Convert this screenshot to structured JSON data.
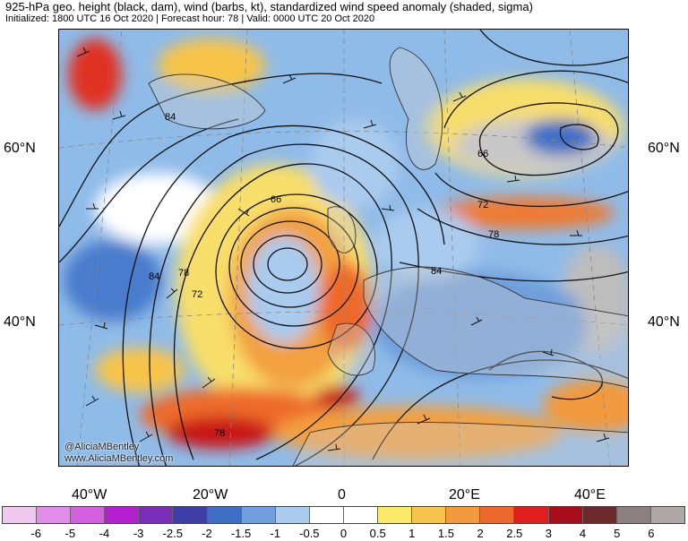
{
  "header": {
    "title": "925-hPa geo. height (black, dam), wind (barbs, kt), standardized wind speed anomaly (shaded, sigma)",
    "subtitle": "Initialized: 1800 UTC 16 Oct 2020 | Forecast hour: 78 | Valid: 0000 UTC 20 Oct 2020"
  },
  "axes": {
    "lat_left": [
      "60°N",
      "40°N"
    ],
    "lat_right": [
      "60°N",
      "40°N"
    ],
    "lon": [
      "40°W",
      "20°W",
      "0",
      "20°E",
      "40°E"
    ]
  },
  "contour_labels": [
    "84",
    "66",
    "84",
    "78",
    "72",
    "66",
    "72",
    "78",
    "84",
    "78"
  ],
  "credits": {
    "handle": "@AliciaMBentley",
    "website": "www.AliciaMBentley.com"
  },
  "colorbar": {
    "labels": [
      "-6",
      "-5",
      "-4",
      "-3",
      "-2.5",
      "-2",
      "-1.5",
      "-1",
      "-0.5",
      "0",
      "0.5",
      "1",
      "1.5",
      "2",
      "2.5",
      "3",
      "4",
      "5",
      "6"
    ],
    "colors": [
      "#f0c8f0",
      "#e08ce8",
      "#d460e0",
      "#b420d0",
      "#7a2eb8",
      "#3e3ea8",
      "#3f6fc4",
      "#6f9fdc",
      "#a9cbee",
      "#ffffff",
      "#ffffff",
      "#fbe96a",
      "#f7c44a",
      "#f29a3c",
      "#ee6a2c",
      "#e01e1e",
      "#a80c18",
      "#6e2a2a",
      "#8a8080",
      "#b0a8a8"
    ]
  },
  "legend_colors": {
    "ocean": "#7fb2e6",
    "land": "#cfcfcf",
    "coast": "#333333"
  }
}
